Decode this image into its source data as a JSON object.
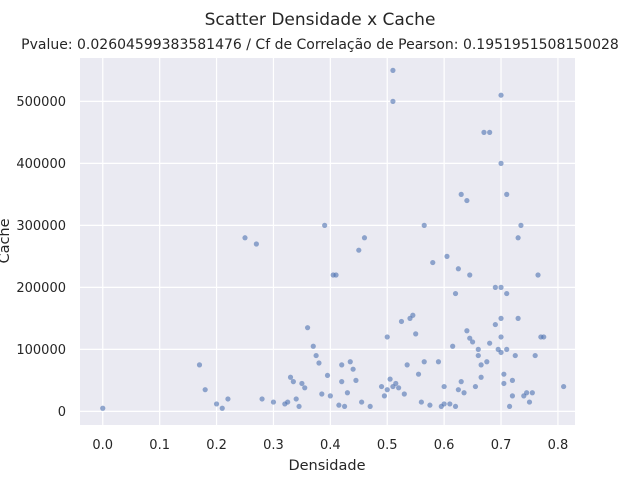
{
  "chart_data": {
    "type": "scatter",
    "title": "Scatter Densidade x Cache",
    "subtitle": "Pvalue: 0.02604599383581476 / Cf de Correlação de Pearson: 0.1951951508150028",
    "xlabel": "Densidade",
    "ylabel": "Cache",
    "xlim": [
      -0.04,
      0.83
    ],
    "ylim": [
      -22000,
      570000
    ],
    "xticks": [
      0.0,
      0.1,
      0.2,
      0.3,
      0.4,
      0.5,
      0.6,
      0.7,
      0.8
    ],
    "xtick_labels": [
      "0.0",
      "0.1",
      "0.2",
      "0.3",
      "0.4",
      "0.5",
      "0.6",
      "0.7",
      "0.8"
    ],
    "yticks": [
      0,
      100000,
      200000,
      300000,
      400000,
      500000
    ],
    "ytick_labels": [
      "0",
      "100000",
      "200000",
      "300000",
      "400000",
      "500000"
    ],
    "grid": true,
    "point_color": "#4c72b0",
    "background_color": "#eaeaf2",
    "points": [
      [
        0.0,
        5000
      ],
      [
        0.17,
        75000
      ],
      [
        0.18,
        35000
      ],
      [
        0.2,
        12000
      ],
      [
        0.21,
        5000
      ],
      [
        0.22,
        20000
      ],
      [
        0.25,
        280000
      ],
      [
        0.27,
        270000
      ],
      [
        0.28,
        20000
      ],
      [
        0.3,
        15000
      ],
      [
        0.32,
        12000
      ],
      [
        0.325,
        15000
      ],
      [
        0.33,
        55000
      ],
      [
        0.335,
        48000
      ],
      [
        0.34,
        20000
      ],
      [
        0.345,
        8000
      ],
      [
        0.35,
        45000
      ],
      [
        0.355,
        38000
      ],
      [
        0.36,
        135000
      ],
      [
        0.37,
        105000
      ],
      [
        0.375,
        90000
      ],
      [
        0.38,
        78000
      ],
      [
        0.385,
        28000
      ],
      [
        0.39,
        300000
      ],
      [
        0.395,
        58000
      ],
      [
        0.4,
        25000
      ],
      [
        0.405,
        220000
      ],
      [
        0.41,
        220000
      ],
      [
        0.415,
        10000
      ],
      [
        0.42,
        48000
      ],
      [
        0.42,
        75000
      ],
      [
        0.425,
        8000
      ],
      [
        0.43,
        30000
      ],
      [
        0.435,
        80000
      ],
      [
        0.44,
        68000
      ],
      [
        0.445,
        50000
      ],
      [
        0.45,
        260000
      ],
      [
        0.455,
        15000
      ],
      [
        0.46,
        280000
      ],
      [
        0.47,
        8000
      ],
      [
        0.49,
        40000
      ],
      [
        0.495,
        25000
      ],
      [
        0.5,
        120000
      ],
      [
        0.5,
        35000
      ],
      [
        0.505,
        52000
      ],
      [
        0.51,
        40000
      ],
      [
        0.51,
        550000
      ],
      [
        0.51,
        500000
      ],
      [
        0.515,
        45000
      ],
      [
        0.52,
        38000
      ],
      [
        0.525,
        145000
      ],
      [
        0.53,
        28000
      ],
      [
        0.535,
        75000
      ],
      [
        0.54,
        150000
      ],
      [
        0.545,
        155000
      ],
      [
        0.55,
        125000
      ],
      [
        0.555,
        60000
      ],
      [
        0.56,
        15000
      ],
      [
        0.565,
        80000
      ],
      [
        0.565,
        300000
      ],
      [
        0.575,
        10000
      ],
      [
        0.58,
        240000
      ],
      [
        0.59,
        80000
      ],
      [
        0.595,
        8000
      ],
      [
        0.6,
        12000
      ],
      [
        0.6,
        40000
      ],
      [
        0.605,
        250000
      ],
      [
        0.61,
        12000
      ],
      [
        0.615,
        105000
      ],
      [
        0.62,
        8000
      ],
      [
        0.62,
        190000
      ],
      [
        0.625,
        230000
      ],
      [
        0.625,
        35000
      ],
      [
        0.63,
        350000
      ],
      [
        0.63,
        48000
      ],
      [
        0.635,
        30000
      ],
      [
        0.64,
        340000
      ],
      [
        0.64,
        130000
      ],
      [
        0.645,
        220000
      ],
      [
        0.645,
        118000
      ],
      [
        0.65,
        112000
      ],
      [
        0.655,
        40000
      ],
      [
        0.66,
        100000
      ],
      [
        0.66,
        90000
      ],
      [
        0.665,
        75000
      ],
      [
        0.665,
        55000
      ],
      [
        0.67,
        450000
      ],
      [
        0.675,
        80000
      ],
      [
        0.68,
        450000
      ],
      [
        0.68,
        110000
      ],
      [
        0.69,
        140000
      ],
      [
        0.69,
        200000
      ],
      [
        0.695,
        100000
      ],
      [
        0.7,
        200000
      ],
      [
        0.7,
        510000
      ],
      [
        0.7,
        400000
      ],
      [
        0.7,
        150000
      ],
      [
        0.7,
        120000
      ],
      [
        0.7,
        95000
      ],
      [
        0.705,
        45000
      ],
      [
        0.705,
        60000
      ],
      [
        0.71,
        350000
      ],
      [
        0.71,
        190000
      ],
      [
        0.71,
        100000
      ],
      [
        0.715,
        8000
      ],
      [
        0.72,
        25000
      ],
      [
        0.72,
        50000
      ],
      [
        0.725,
        90000
      ],
      [
        0.73,
        280000
      ],
      [
        0.73,
        150000
      ],
      [
        0.735,
        300000
      ],
      [
        0.74,
        25000
      ],
      [
        0.745,
        30000
      ],
      [
        0.75,
        15000
      ],
      [
        0.755,
        30000
      ],
      [
        0.76,
        90000
      ],
      [
        0.765,
        220000
      ],
      [
        0.77,
        120000
      ],
      [
        0.775,
        120000
      ],
      [
        0.81,
        40000
      ]
    ]
  }
}
